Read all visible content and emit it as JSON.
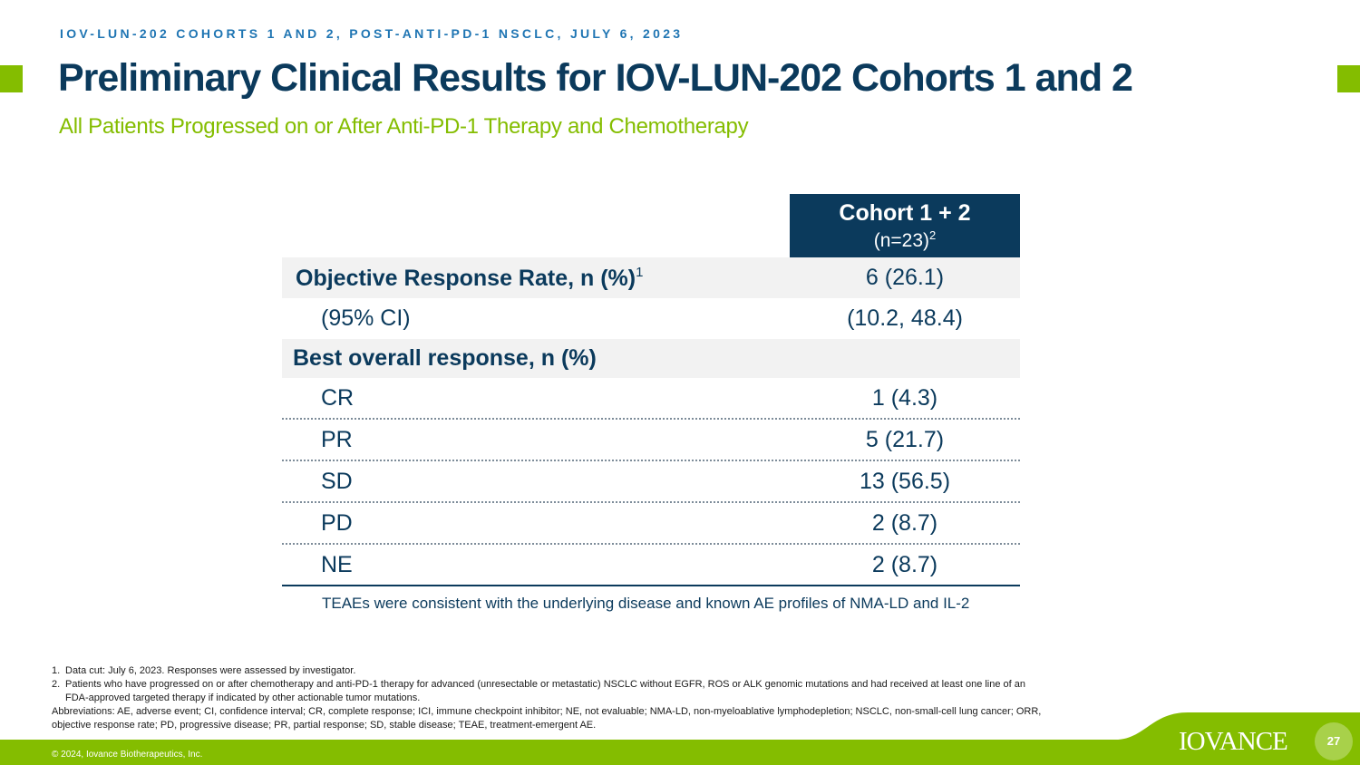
{
  "header": {
    "kicker": "IOV-LUN-202 COHORTS 1 AND 2, POST-ANTI-PD-1 NSCLC, JULY 6, 2023",
    "title": "Preliminary Clinical Results for IOV-LUN-202 Cohorts 1 and 2",
    "subtitle": "All Patients Progressed on or After Anti-PD-1 Therapy and Chemotherapy"
  },
  "table": {
    "column_header": "Cohort 1 + 2",
    "column_n": "(n=23)",
    "column_n_sup": "2",
    "orr": {
      "label": "Objective Response Rate, n (%)",
      "sup": "1",
      "value": "6 (26.1)"
    },
    "ci": {
      "label": "(95% CI)",
      "value": "(10.2, 48.4)"
    },
    "bor_label": "Best overall response, n (%)",
    "responses": [
      {
        "label": "CR",
        "value": "1 (4.3)"
      },
      {
        "label": "PR",
        "value": "5 (21.7)"
      },
      {
        "label": "SD",
        "value": "13 (56.5)"
      },
      {
        "label": "PD",
        "value": "2 (8.7)"
      },
      {
        "label": "NE",
        "value": "2 (8.7)"
      }
    ]
  },
  "teae_note": "TEAEs were consistent with the underlying disease and known AE profiles of NMA-LD and IL-2",
  "footnotes": {
    "items": [
      {
        "num": "1.",
        "text": "Data cut: July 6, 2023. Responses were assessed by investigator."
      },
      {
        "num": "2.",
        "text": "Patients who have progressed on or after chemotherapy and anti-PD-1 therapy for advanced (unresectable or metastatic) NSCLC without EGFR, ROS or ALK genomic mutations and had received at least one line of an FDA-approved targeted therapy if indicated by other actionable tumor mutations."
      }
    ],
    "abbreviations": "Abbreviations: AE, adverse event; CI, confidence interval; CR, complete response; ICI, immune checkpoint inhibitor; NE, not evaluable; NMA-LD, non-myeloablative lymphodepletion; NSCLC, non-small-cell lung cancer; ORR, objective response rate; PD, progressive disease; PR, partial response; SD, stable disease; TEAE, treatment-emergent AE."
  },
  "footer": {
    "copyright": "© 2024, Iovance Biotherapeutics, Inc.",
    "logo": "IOVANCE",
    "page_number": "27"
  },
  "colors": {
    "navy": "#0b3a5c",
    "green": "#84bd00",
    "kicker_blue": "#1f75b3",
    "row_shade": "#f2f2f2"
  }
}
